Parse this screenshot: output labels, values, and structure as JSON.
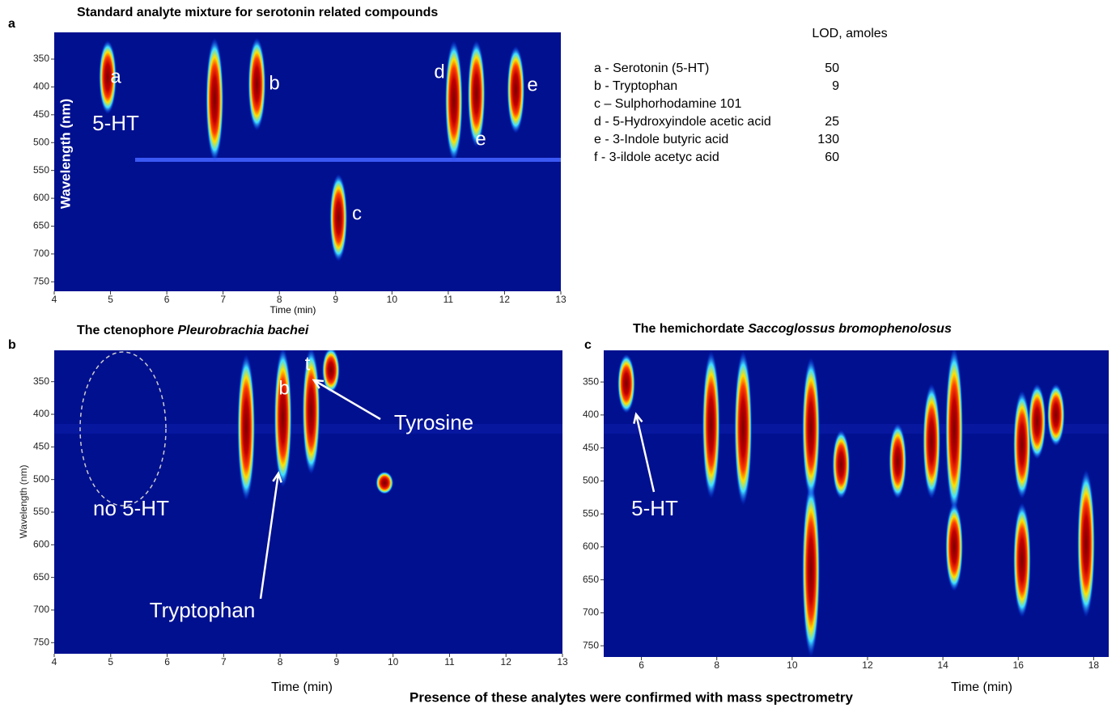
{
  "panels": [
    {
      "letter": "a",
      "title": "Standard analyte mixture for serotonin related compounds",
      "x_label": "Time (min)",
      "y_label": "Wavelength (nm)",
      "xlim": [
        4,
        13
      ],
      "ylim": [
        302,
        767
      ],
      "xticks": [
        4,
        5,
        6,
        7,
        8,
        9,
        10,
        11,
        12,
        13
      ],
      "yticks": [
        350,
        400,
        450,
        500,
        550,
        600,
        650,
        700,
        750
      ],
      "peaks": [
        [
          4.95,
          325,
          440
        ],
        [
          6.85,
          320,
          525
        ],
        [
          7.6,
          320,
          470
        ],
        [
          9.05,
          565,
          705
        ],
        [
          11.1,
          325,
          525
        ],
        [
          11.5,
          325,
          500
        ],
        [
          12.2,
          335,
          475
        ]
      ],
      "annotations": [
        "a",
        "b",
        "c",
        "d",
        "e",
        "e",
        "5-HT"
      ]
    },
    {
      "letter": "b",
      "title": "The ctenophore ",
      "title_italic": "Pleurobrachia bachei",
      "x_label": "Time (min)",
      "y_label": "Wavelength (nm)",
      "xlim": [
        4,
        13
      ],
      "ylim": [
        302,
        767
      ],
      "xticks": [
        4,
        5,
        6,
        7,
        8,
        9,
        10,
        11,
        12,
        13
      ],
      "yticks": [
        350,
        400,
        450,
        500,
        550,
        600,
        650,
        700,
        750
      ],
      "peaks": [
        [
          7.4,
          315,
          525
        ],
        [
          8.05,
          305,
          505
        ],
        [
          8.55,
          305,
          485
        ],
        [
          8.9,
          305,
          360
        ],
        [
          9.85,
          495,
          515
        ]
      ],
      "annotations": [
        "b",
        "t",
        "no 5-HT",
        "Tyrosine",
        "Tryptophan"
      ]
    },
    {
      "letter": "c",
      "title": "The hemichordate ",
      "title_italic": "Saccoglossus bromophenolosus",
      "x_label": "Time (min)",
      "xlim": [
        5,
        18.4
      ],
      "ylim": [
        302,
        767
      ],
      "xticks": [
        6,
        8,
        10,
        12,
        14,
        16,
        18
      ],
      "yticks": [
        350,
        400,
        450,
        500,
        550,
        600,
        650,
        700,
        750
      ],
      "peaks": [
        [
          5.6,
          315,
          390
        ],
        [
          7.85,
          310,
          520
        ],
        [
          8.7,
          310,
          530
        ],
        [
          10.5,
          510,
          760
        ],
        [
          10.5,
          320,
          520
        ],
        [
          11.3,
          430,
          520
        ],
        [
          12.8,
          420,
          520
        ],
        [
          13.7,
          360,
          520
        ],
        [
          14.3,
          305,
          540
        ],
        [
          14.3,
          540,
          660
        ],
        [
          16.1,
          370,
          520
        ],
        [
          16.1,
          540,
          700
        ],
        [
          16.5,
          360,
          460
        ],
        [
          17.0,
          360,
          440
        ],
        [
          17.8,
          490,
          700
        ]
      ],
      "annotations": [
        "5-HT"
      ]
    }
  ],
  "legend": {
    "header": "LOD, amoles",
    "rows": [
      {
        "label": "a - Serotonin (5-HT)",
        "lod": 50
      },
      {
        "label": "b - Tryptophan",
        "lod": 9
      },
      {
        "label": "c – Sulphorhodamine 101"
      },
      {
        "label": "d - 5-Hydroxyindole acetic acid",
        "lod": 25
      },
      {
        "label": "e - 3-Indole butyric acid",
        "lod": 130
      },
      {
        "label": "f -  3-ildole acetyc acid",
        "lod": 60
      }
    ]
  },
  "footer": "Presence of these analytes were confirmed with mass spectrometry"
}
